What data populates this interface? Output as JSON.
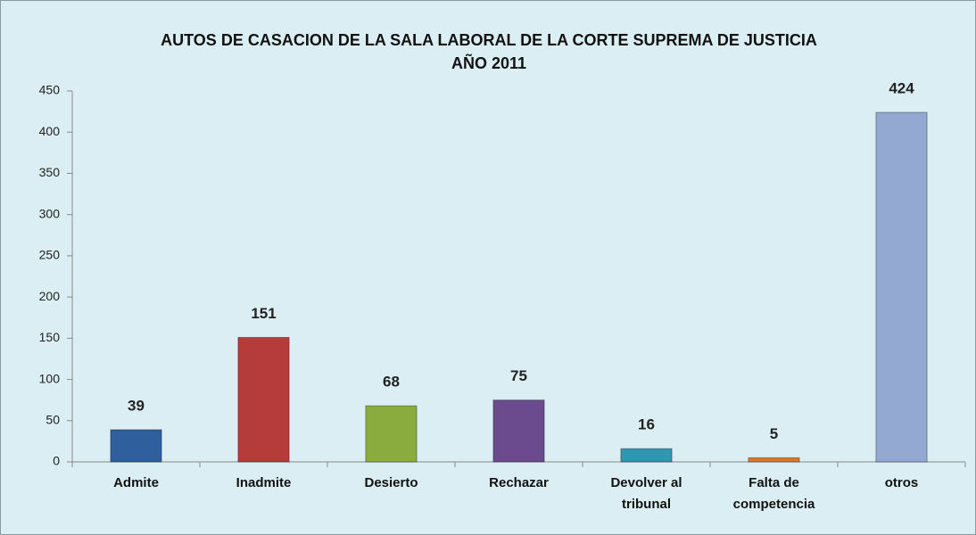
{
  "chart_data": {
    "type": "bar",
    "title": "AUTOS DE CASACION DE LA SALA LABORAL DE LA CORTE SUPREMA DE JUSTICIA",
    "subtitle": "AÑO 2011",
    "categories": [
      "Admite",
      "Inadmite",
      "Desierto",
      "Rechazar",
      "Devolver al tribunal",
      "Falta de competencia",
      "otros"
    ],
    "values": [
      39,
      151,
      68,
      75,
      16,
      5,
      424
    ],
    "colors": [
      "#2f5f9c",
      "#b53c3a",
      "#8aab3e",
      "#6b4b8e",
      "#2f97b0",
      "#d9782a",
      "#93a9d2"
    ],
    "ylim": [
      0,
      450
    ],
    "yticks": [
      0,
      50,
      100,
      150,
      200,
      250,
      300,
      350,
      400,
      450
    ],
    "grid": false
  }
}
